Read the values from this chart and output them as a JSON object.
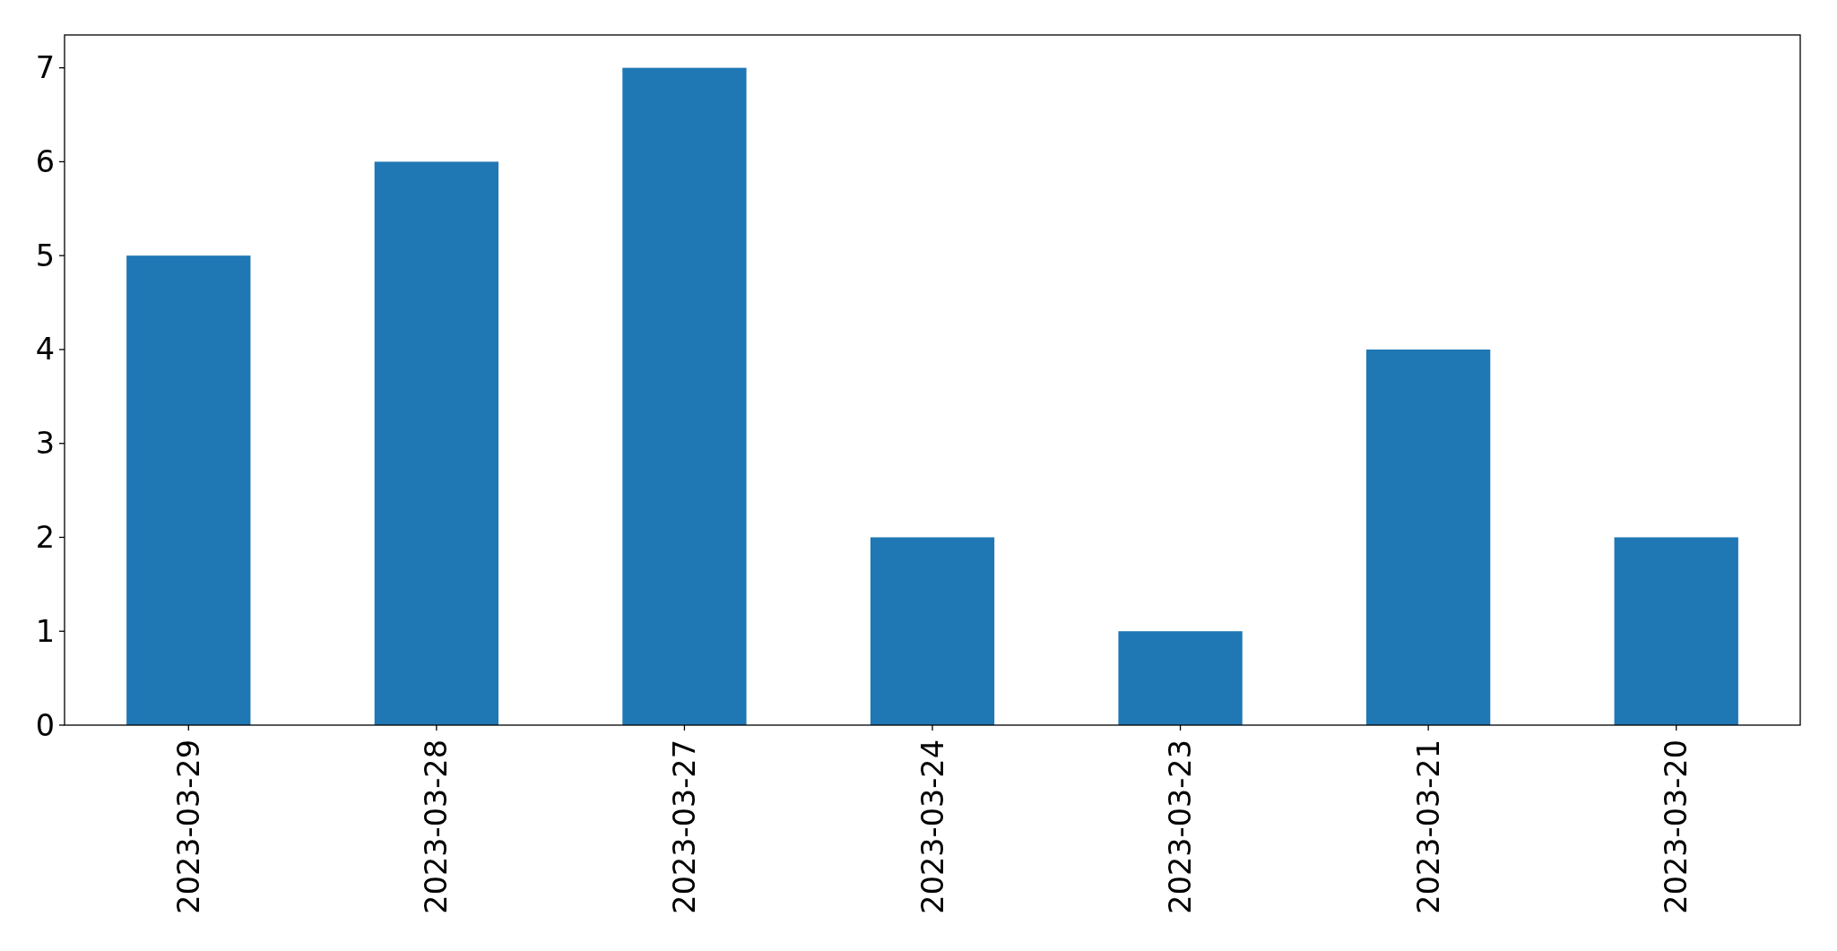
{
  "chart_data": {
    "type": "bar",
    "categories": [
      "2023-03-29",
      "2023-03-28",
      "2023-03-27",
      "2023-03-24",
      "2023-03-23",
      "2023-03-21",
      "2023-03-20"
    ],
    "values": [
      5,
      6,
      7,
      2,
      1,
      4,
      2
    ],
    "color": "#1f77b4",
    "ylim": [
      0,
      7.35
    ],
    "yticks": [
      0,
      1,
      2,
      3,
      4,
      5,
      6,
      7
    ],
    "grid": false
  }
}
